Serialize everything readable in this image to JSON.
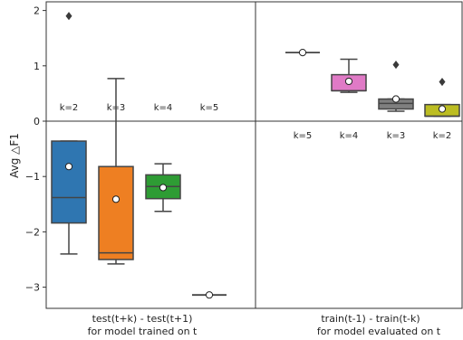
{
  "chart_data": {
    "type": "box",
    "ylabel": "Avg △F1",
    "ylim": [
      -3.4,
      2.2
    ],
    "yticks": [
      -3,
      -2,
      -1,
      0,
      1,
      2
    ],
    "grid": false,
    "panels": [
      {
        "xlabel_line1": "test(t+k) - test(t+1)",
        "xlabel_line2": "for model trained on t",
        "boxes": [
          {
            "label": "k=2",
            "color": "#2f76b1",
            "min": -2.4,
            "q1": -1.84,
            "median": -1.38,
            "q3": -0.36,
            "max": -0.36,
            "mean": -0.82,
            "outliers": [
              1.9
            ]
          },
          {
            "label": "k=3",
            "color": "#ee7f22",
            "min": -2.58,
            "q1": -2.5,
            "median": -2.38,
            "q3": -0.82,
            "max": 0.77,
            "mean": -1.41,
            "outliers": []
          },
          {
            "label": "k=4",
            "color": "#2e9c34",
            "min": -1.63,
            "q1": -1.4,
            "median": -1.18,
            "q3": -0.97,
            "max": -0.77,
            "mean": -1.2,
            "outliers": []
          },
          {
            "label": "k=5",
            "color": "#d62728",
            "min": -3.14,
            "q1": -3.14,
            "median": -3.14,
            "q3": -3.14,
            "max": -3.14,
            "mean": -3.14,
            "outliers": []
          }
        ]
      },
      {
        "xlabel_line1": "train(t-1) - train(t-k)",
        "xlabel_line2": "for model evaluated on t",
        "boxes": [
          {
            "label": "k=5",
            "color": "#9467bd",
            "min": 1.24,
            "q1": 1.24,
            "median": 1.24,
            "q3": 1.24,
            "max": 1.24,
            "mean": 1.24,
            "outliers": []
          },
          {
            "label": "k=4",
            "color": "#e07ac6",
            "min": 0.52,
            "q1": 0.55,
            "median": 0.55,
            "q3": 0.84,
            "max": 1.12,
            "mean": 0.72,
            "outliers": []
          },
          {
            "label": "k=3",
            "color": "#7f7f7f",
            "min": 0.18,
            "q1": 0.22,
            "median": 0.32,
            "q3": 0.4,
            "max": 0.4,
            "mean": 0.4,
            "outliers": [
              1.02
            ]
          },
          {
            "label": "k=2",
            "color": "#bcbd22",
            "min": 0.09,
            "q1": 0.09,
            "median": 0.09,
            "q3": 0.3,
            "max": 0.3,
            "mean": 0.22,
            "outliers": [
              0.71
            ]
          }
        ]
      }
    ]
  }
}
